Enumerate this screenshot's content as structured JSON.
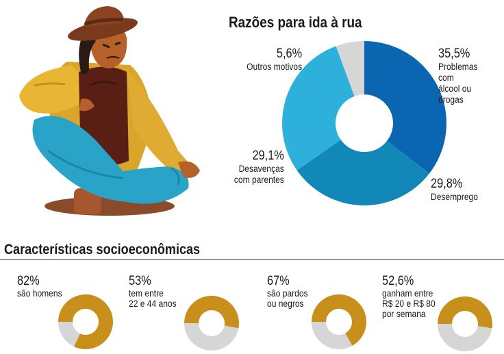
{
  "chart_data": [
    {
      "type": "pie",
      "title": "Razões para ida à rua",
      "donut": true,
      "slices": [
        {
          "label": "Problemas com\nálcool ou drogas",
          "value": 35.5,
          "display": "35,5%",
          "color": "#0a66b0"
        },
        {
          "label": "Desemprego",
          "value": 29.8,
          "display": "29,8%",
          "color": "#1288b8"
        },
        {
          "label": "Desavenças\ncom parentes",
          "value": 29.1,
          "display": "29,1%",
          "color": "#2eb0dc"
        },
        {
          "label": "Outros motivos",
          "value": 5.6,
          "display": "5,6%",
          "color": "#d6d6d6"
        }
      ]
    },
    {
      "type": "pie",
      "title": "Características socioeconômicas",
      "donut": true,
      "items": [
        {
          "value": 82,
          "display": "82%",
          "label": "são homens",
          "color": "#c8901a",
          "rest_color": "#d6d6d6"
        },
        {
          "value": 53,
          "display": "53%",
          "label": "tem entre\n22 e 44 anos",
          "color": "#c8901a",
          "rest_color": "#d6d6d6"
        },
        {
          "value": 67,
          "display": "67%",
          "label": "são pardos\nou negros",
          "color": "#c8901a",
          "rest_color": "#d6d6d6"
        },
        {
          "value": 52.6,
          "display": "52,6%",
          "label": "ganham entre\nR$ 20 e R$ 80\npor semana",
          "color": "#c8901a",
          "rest_color": "#d6d6d6"
        }
      ]
    }
  ]
}
